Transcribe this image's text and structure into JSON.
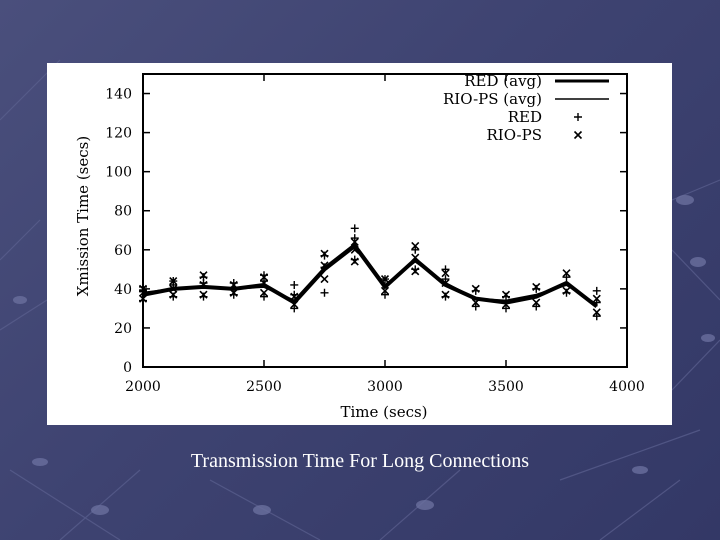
{
  "caption": "Transmission Time For Long Connections",
  "colors": {
    "slide_background": "#3e4371",
    "plot_background": "#ffffff",
    "ink": "#000000"
  },
  "chart_data": {
    "type": "line",
    "title": "",
    "xlabel": "Time (secs)",
    "ylabel": "Xmission Time (secs)",
    "xlim": [
      2000,
      4000
    ],
    "ylim": [
      0,
      150
    ],
    "xticks": [
      2000,
      2500,
      3000,
      3500,
      4000
    ],
    "yticks": [
      0,
      20,
      40,
      60,
      80,
      100,
      120,
      140
    ],
    "legend_position": "top-right",
    "grid": false,
    "series": [
      {
        "name": "RED (avg)",
        "kind": "line",
        "line_width": "thick",
        "x": [
          2000,
          2125,
          2250,
          2375,
          2500,
          2625,
          2750,
          2875,
          3000,
          3125,
          3250,
          3375,
          3500,
          3625,
          3750,
          3875
        ],
        "y": [
          37,
          40,
          41,
          40,
          42,
          33,
          50,
          62,
          41,
          55,
          42,
          35,
          33,
          36,
          43,
          31
        ]
      },
      {
        "name": "RIO-PS (avg)",
        "kind": "line",
        "line_width": "normal",
        "x": [
          2000,
          2125,
          2250,
          2375,
          2500,
          2625,
          2750,
          2875,
          3000,
          3125,
          3250,
          3375,
          3500,
          3625,
          3750,
          3875
        ],
        "y": [
          38,
          40,
          41,
          40,
          41,
          34,
          51,
          63,
          42,
          54,
          43,
          35,
          34,
          37,
          42,
          32
        ]
      },
      {
        "name": "RED",
        "kind": "points",
        "marker": "plus",
        "x": [
          2000,
          2000,
          2000,
          2125,
          2125,
          2125,
          2250,
          2250,
          2250,
          2375,
          2375,
          2500,
          2500,
          2500,
          2625,
          2625,
          2625,
          2750,
          2750,
          2750,
          2875,
          2875,
          2875,
          3000,
          3000,
          3125,
          3125,
          3250,
          3250,
          3250,
          3375,
          3375,
          3500,
          3500,
          3625,
          3625,
          3750,
          3750,
          3875,
          3875,
          3875
        ],
        "y": [
          34,
          39,
          41,
          36,
          42,
          44,
          36,
          43,
          46,
          37,
          43,
          36,
          44,
          47,
          30,
          37,
          42,
          38,
          51,
          57,
          55,
          66,
          71,
          37,
          45,
          50,
          60,
          36,
          45,
          50,
          31,
          39,
          30,
          36,
          31,
          40,
          38,
          46,
          26,
          33,
          39
        ]
      },
      {
        "name": "RIO-PS",
        "kind": "points",
        "marker": "cross",
        "x": [
          2000,
          2000,
          2000,
          2125,
          2125,
          2125,
          2250,
          2250,
          2250,
          2375,
          2375,
          2500,
          2500,
          2500,
          2625,
          2625,
          2750,
          2750,
          2750,
          2875,
          2875,
          2875,
          3000,
          3000,
          3125,
          3125,
          3125,
          3250,
          3250,
          3250,
          3375,
          3375,
          3500,
          3500,
          3625,
          3625,
          3750,
          3750,
          3875,
          3875
        ],
        "y": [
          35,
          38,
          40,
          37,
          40,
          44,
          37,
          42,
          47,
          38,
          42,
          38,
          43,
          46,
          32,
          36,
          45,
          52,
          58,
          54,
          60,
          64,
          39,
          45,
          49,
          56,
          62,
          37,
          43,
          48,
          33,
          40,
          32,
          37,
          33,
          41,
          39,
          48,
          28,
          35
        ]
      }
    ]
  }
}
